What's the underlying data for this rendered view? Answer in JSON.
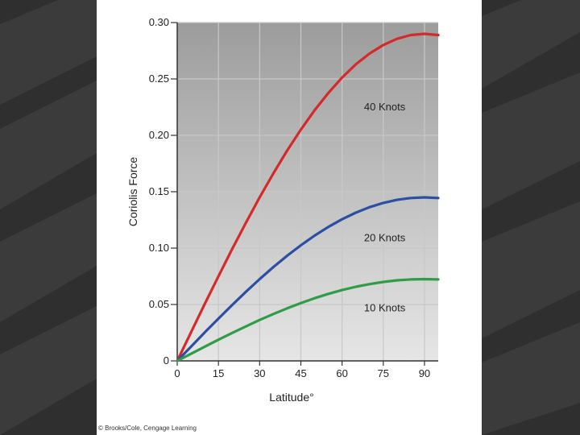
{
  "credit": "© Brooks/Cole, Cengage Learning",
  "colors": {
    "slide_background": "#2f2f2f",
    "plot_gradient_top": "#9c9c9c",
    "plot_gradient_bottom": "#e6e6e6",
    "grid": "#c8c8c8",
    "red": "#d42a2a",
    "blue": "#2c4fa3",
    "green": "#2f9c46"
  },
  "chart_data": {
    "type": "line",
    "xlabel": "Latitude°",
    "ylabel": "Coriolis Force",
    "xlim": [
      0,
      95
    ],
    "ylim": [
      0,
      0.3
    ],
    "x_ticks": [
      0,
      15,
      30,
      45,
      60,
      75,
      90
    ],
    "x_tick_labels": [
      "0",
      "15",
      "30",
      "45",
      "60",
      "75",
      "90"
    ],
    "y_ticks": [
      0,
      0.05,
      0.1,
      0.15,
      0.2,
      0.25,
      0.3
    ],
    "y_tick_labels": [
      "0",
      "0.05",
      "0.10",
      "0.15",
      "0.20",
      "0.25",
      "0.30"
    ],
    "grid": true,
    "legend": "inline labels",
    "x": [
      0,
      5,
      10,
      15,
      20,
      25,
      30,
      35,
      40,
      45,
      50,
      55,
      60,
      65,
      70,
      75,
      80,
      85,
      90,
      95
    ],
    "series": [
      {
        "name": "40 Knots",
        "color": "#d42a2a",
        "label_at": [
          68,
          0.222
        ],
        "values": [
          0,
          0.0253,
          0.0504,
          0.0751,
          0.0992,
          0.1225,
          0.145,
          0.1663,
          0.1864,
          0.2051,
          0.2222,
          0.2376,
          0.2512,
          0.2629,
          0.2725,
          0.2801,
          0.2856,
          0.2889,
          0.29,
          0.2889
        ]
      },
      {
        "name": "20 Knots",
        "color": "#2c4fa3",
        "label_at": [
          68,
          0.106
        ],
        "values": [
          0,
          0.0126,
          0.0252,
          0.0375,
          0.0496,
          0.0613,
          0.0725,
          0.0832,
          0.0932,
          0.1025,
          0.1111,
          0.1188,
          0.1256,
          0.1314,
          0.1363,
          0.1401,
          0.1428,
          0.1444,
          0.145,
          0.1444
        ]
      },
      {
        "name": "10 Knots",
        "color": "#2f9c46",
        "label_at": [
          68,
          0.044
        ],
        "values": [
          0,
          0.0063,
          0.0126,
          0.0188,
          0.0248,
          0.0306,
          0.0363,
          0.0416,
          0.0466,
          0.0513,
          0.0556,
          0.0594,
          0.0628,
          0.0657,
          0.0681,
          0.07,
          0.0714,
          0.0722,
          0.0725,
          0.0722
        ]
      }
    ]
  }
}
